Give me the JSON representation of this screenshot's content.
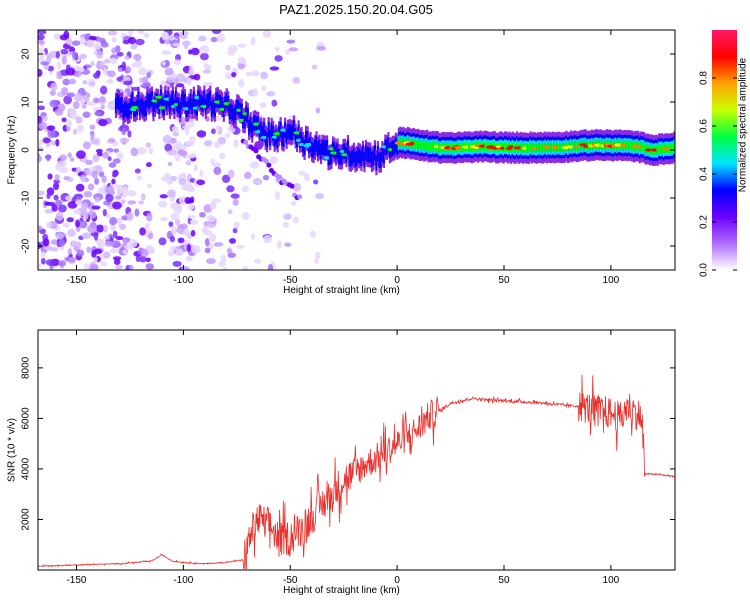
{
  "title": "PAZ1.2025.150.20.04.G05",
  "chart_data": [
    {
      "type": "heatmap",
      "xlabel": "Height of straight line (km)",
      "ylabel": "Frequency (Hz)",
      "xlim": [
        -168,
        130
      ],
      "ylim": [
        -25,
        25
      ],
      "xticks": [
        -150,
        -100,
        -50,
        0,
        50,
        100
      ],
      "yticks": [
        -20,
        -10,
        0,
        10,
        20
      ],
      "colorbar": {
        "label": "Normalized spectral amplitude",
        "range": [
          0,
          1
        ],
        "ticks": [
          "0.0",
          "0.2",
          "0.4",
          "0.6",
          "0.8"
        ],
        "colors": [
          "#ffffff",
          "#8a2be2",
          "#0000ff",
          "#00e5ff",
          "#00ff00",
          "#ffff00",
          "#ff8000",
          "#ff0000",
          "#ff1493"
        ]
      },
      "ridge": {
        "x": [
          -132,
          -120,
          -110,
          -100,
          -90,
          -80,
          -75,
          -70,
          -65,
          -60,
          -55,
          -50,
          -45,
          -40,
          -35,
          -30,
          -25,
          -20,
          -15,
          -10,
          -5,
          0,
          5,
          10,
          20,
          30,
          40,
          50,
          60,
          70,
          80,
          90,
          100,
          110,
          120,
          130
        ],
        "y": [
          9,
          9.5,
          10,
          9.5,
          10,
          9,
          8,
          6,
          4,
          3,
          3,
          4,
          2,
          1,
          0,
          -1,
          -0.5,
          -1,
          -1,
          -1.5,
          0,
          1.5,
          1.5,
          1,
          0.5,
          0.5,
          0.7,
          0.5,
          0.5,
          0.5,
          0.7,
          1,
          1,
          0.8,
          0,
          0.5
        ]
      }
    },
    {
      "type": "line",
      "xlabel": "Height of straight line (km)",
      "ylabel": "SNR (10 * v/v)",
      "xlim": [
        -168,
        130
      ],
      "ylim": [
        0,
        9500
      ],
      "xticks": [
        -150,
        -100,
        -50,
        0,
        50,
        100
      ],
      "yticks": [
        2000,
        4000,
        6000,
        8000
      ],
      "color": "#e8302c",
      "series": [
        {
          "x": [
            -168,
            -150,
            -130,
            -115,
            -110,
            -105,
            -100,
            -90,
            -80,
            -72,
            -68,
            -65,
            -60,
            -55,
            -50,
            -45,
            -40,
            -35,
            -30,
            -25,
            -20,
            -15,
            -10,
            -5,
            0,
            5,
            10,
            15,
            20,
            25,
            30,
            35,
            40,
            50,
            60,
            70,
            80,
            85,
            90,
            95,
            100,
            105,
            108,
            112,
            114,
            116,
            120,
            130
          ],
          "y": [
            150,
            200,
            250,
            350,
            600,
            350,
            300,
            250,
            300,
            400,
            1500,
            2000,
            1800,
            1200,
            1300,
            1600,
            2100,
            2600,
            3000,
            3600,
            3800,
            4200,
            4400,
            4700,
            5000,
            5300,
            5600,
            6100,
            6300,
            6600,
            6700,
            6800,
            6750,
            6700,
            6650,
            6600,
            6500,
            6500,
            6400,
            6300,
            6200,
            6000,
            6500,
            6200,
            6100,
            3800,
            3800,
            3700
          ]
        }
      ]
    }
  ]
}
